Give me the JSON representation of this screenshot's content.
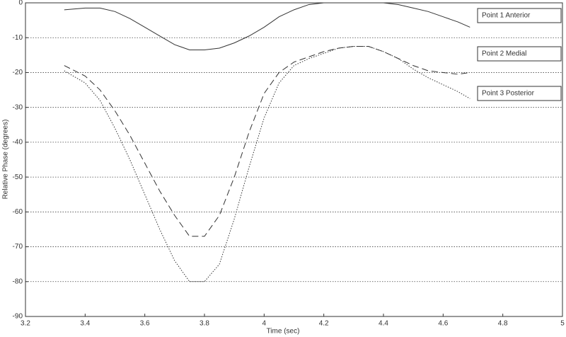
{
  "chart_data": {
    "type": "line",
    "xlabel": "Time (sec)",
    "ylabel": "Relative Phase (degrees)",
    "x": [
      3.33,
      3.4,
      3.45,
      3.5,
      3.55,
      3.6,
      3.65,
      3.7,
      3.75,
      3.8,
      3.85,
      3.9,
      3.95,
      4.0,
      4.05,
      4.1,
      4.15,
      4.2,
      4.25,
      4.3,
      4.35,
      4.4,
      4.45,
      4.5,
      4.55,
      4.6,
      4.65,
      4.69
    ],
    "series": [
      {
        "name": "Point 1 Anterior",
        "color": "#333333",
        "dash": "solid",
        "values": [
          -2,
          -1.5,
          -1.5,
          -2.5,
          -4.5,
          -7,
          -9.5,
          -12,
          -13.5,
          -13.5,
          -13,
          -11.5,
          -9.5,
          -7,
          -4,
          -2,
          -0.5,
          0,
          0,
          0,
          0,
          0,
          -0.5,
          -1.5,
          -2.5,
          -4,
          -5.5,
          -7
        ]
      },
      {
        "name": "Point 2 Medial",
        "color": "#333333",
        "dash": "dashed",
        "values": [
          -18,
          -21,
          -25,
          -31,
          -38,
          -46,
          -54,
          -61,
          -67,
          -67,
          -61,
          -50,
          -37,
          -26,
          -20,
          -17,
          -15.5,
          -14,
          -13,
          -12.5,
          -12.5,
          -14,
          -16,
          -18,
          -19.5,
          -20,
          -20.5,
          -20
        ]
      },
      {
        "name": "Point 3 Posterior",
        "color": "#333333",
        "dash": "dotted",
        "values": [
          -19.5,
          -23,
          -28,
          -36,
          -45,
          -55,
          -65,
          -74,
          -80,
          -80,
          -75,
          -62,
          -47,
          -33,
          -23,
          -18,
          -16,
          -14.5,
          -13,
          -12.5,
          -12.5,
          -14,
          -16,
          -19,
          -21.5,
          -23.5,
          -25.5,
          -27.5
        ]
      }
    ],
    "xlim": [
      3.2,
      5
    ],
    "xticks": [
      3.2,
      3.4,
      3.6,
      3.8,
      4,
      4.2,
      4.4,
      4.6,
      4.8,
      5
    ],
    "ylim": [
      -90,
      0
    ],
    "yticks": [
      0,
      -10,
      -20,
      -30,
      -40,
      -50,
      -60,
      -70,
      -80,
      -90
    ],
    "grid": true,
    "legend": "right"
  }
}
